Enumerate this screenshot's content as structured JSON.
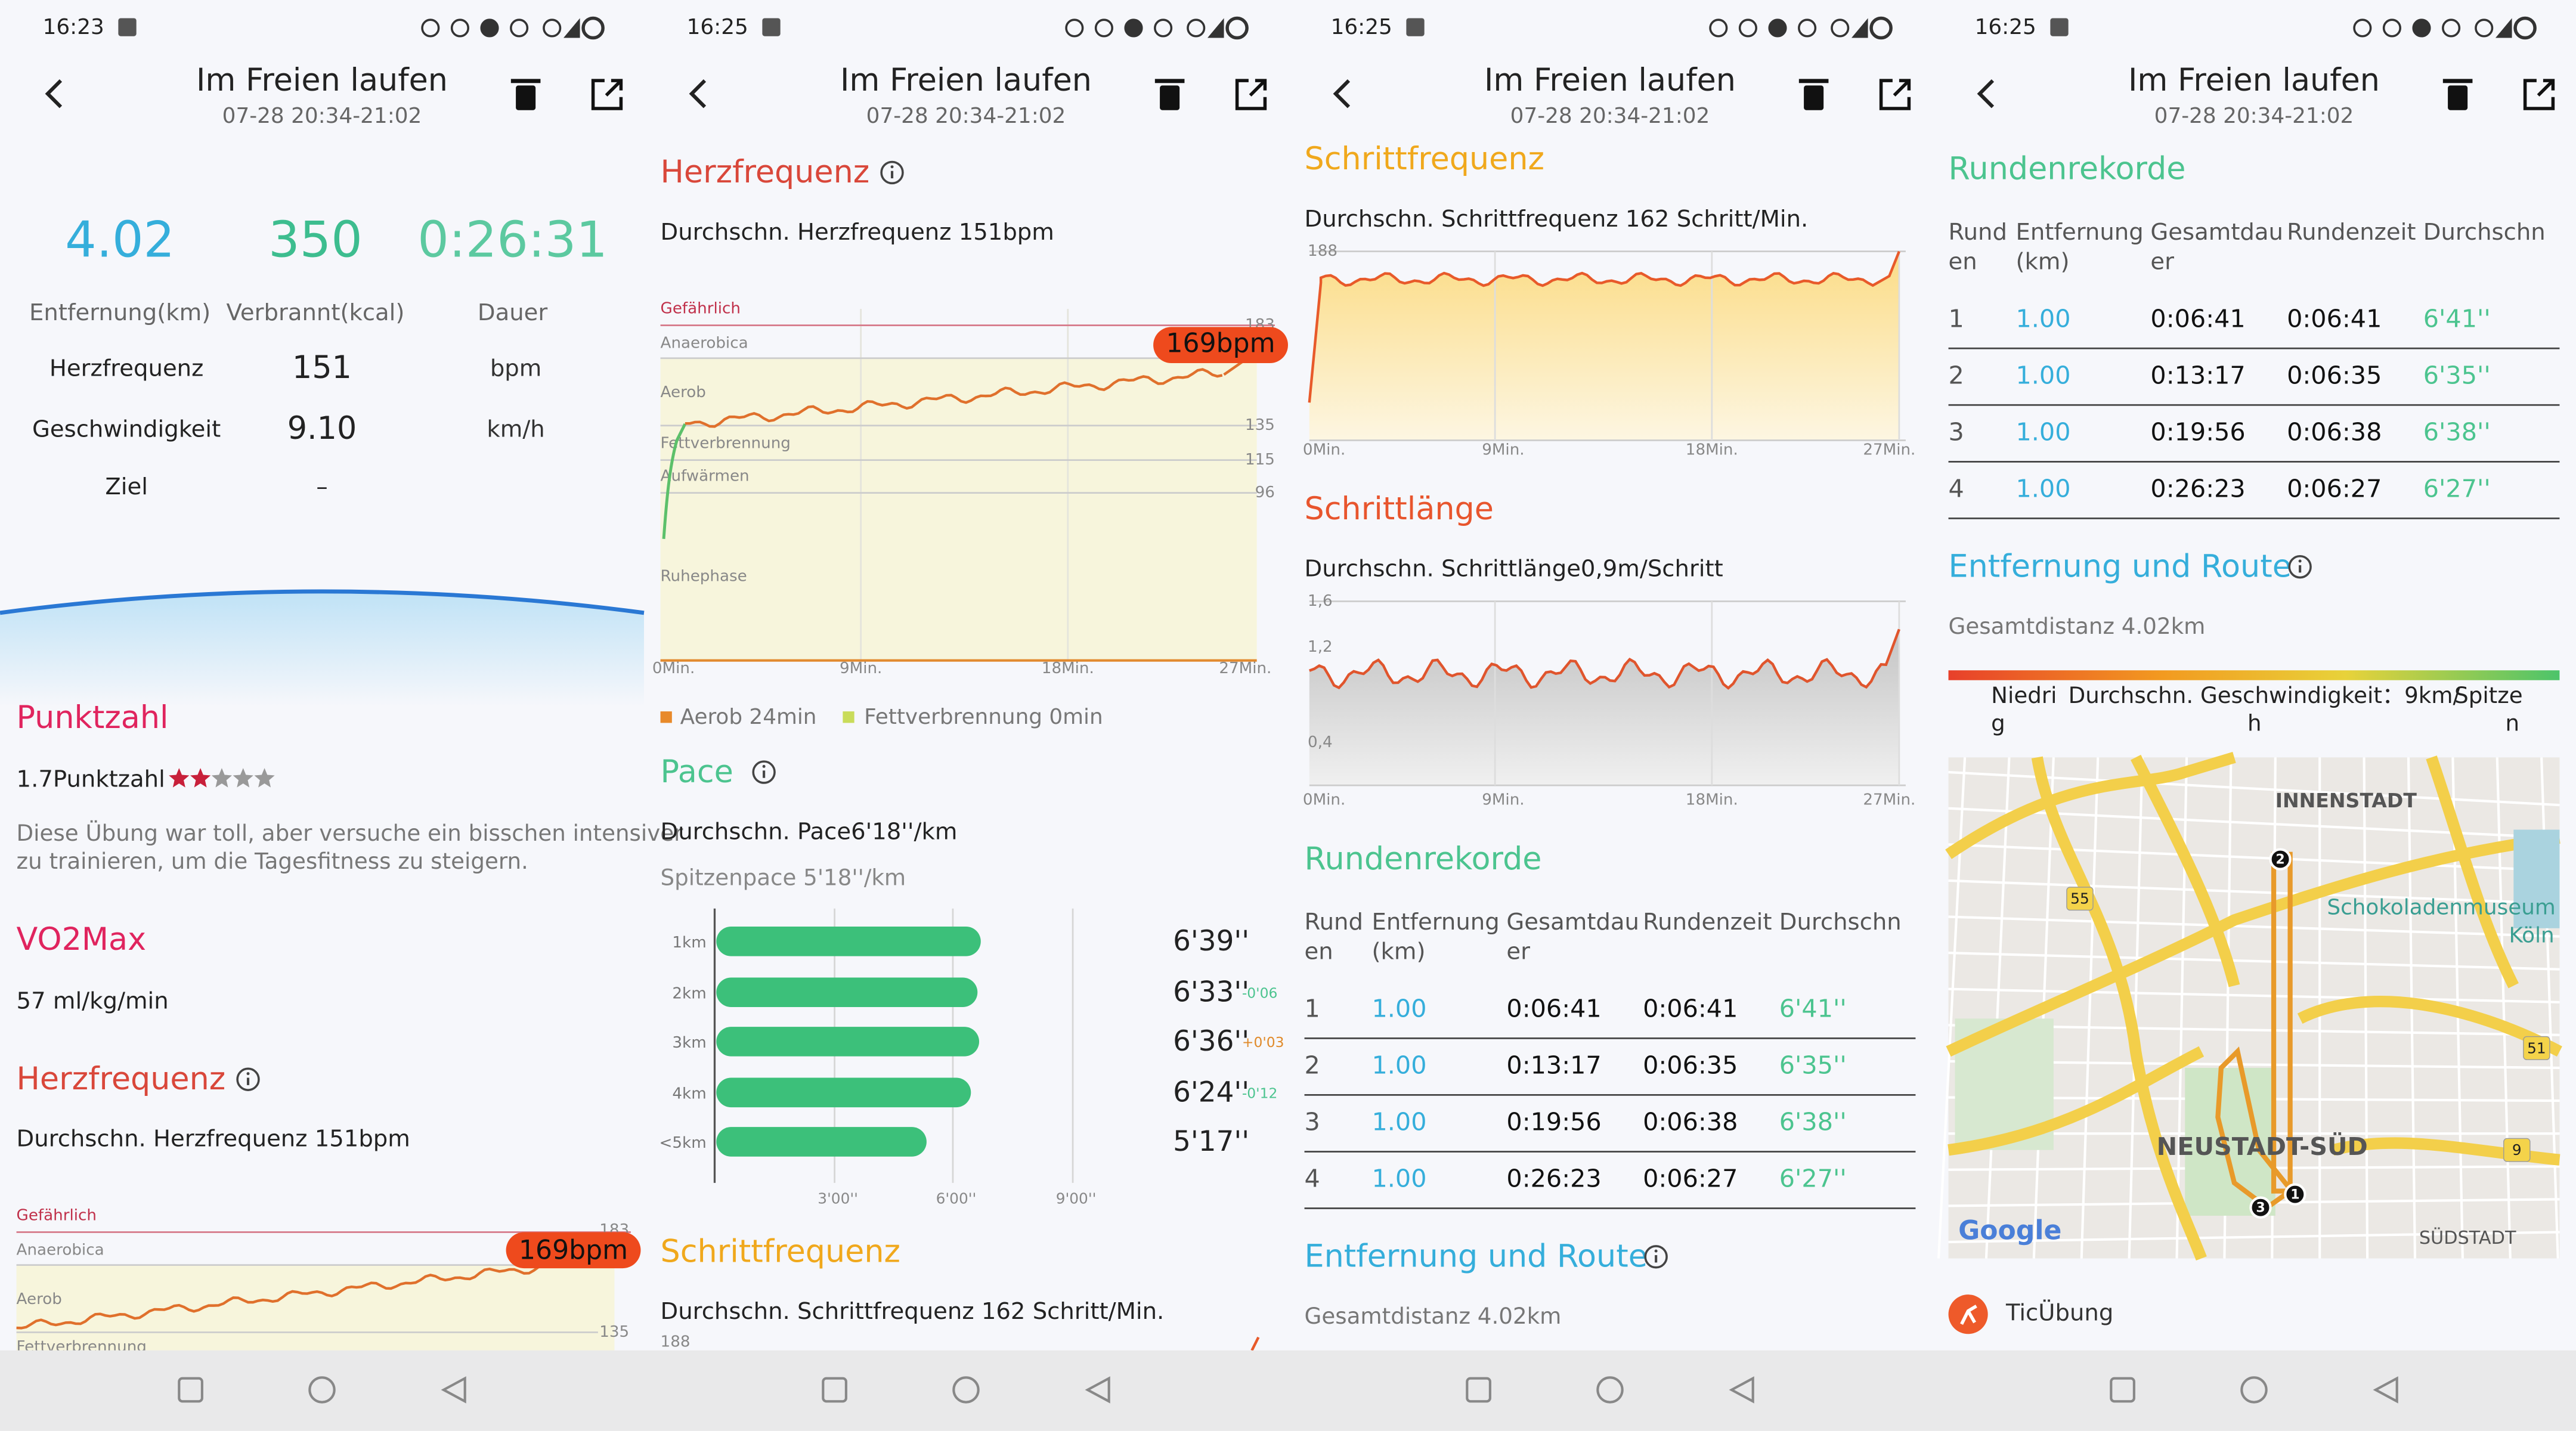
{
  "status_bar": {
    "times": [
      "16:23",
      "16:25",
      "16:25",
      "16:25"
    ]
  },
  "header": {
    "title": "Im Freien laufen",
    "subtitle": "07-28 20:34-21:02"
  },
  "summary": {
    "stats": [
      {
        "value": "4.02",
        "label": "Entfernung(km)"
      },
      {
        "value": "350",
        "label": "Verbrannt(kcal)"
      },
      {
        "value": "0:26:31",
        "label": "Dauer"
      }
    ],
    "rows": [
      {
        "label": "Herzfrequenz",
        "value": "151",
        "unit": "bpm"
      },
      {
        "label": "Geschwindigkeit",
        "value": "9.10",
        "unit": "km/h"
      },
      {
        "label": "Ziel",
        "value": "–"
      }
    ]
  },
  "score": {
    "title": "Punktzahl",
    "value": "1.7Punktzahl",
    "text": [
      "Diese Übung war toll, aber versuche ein bisschen intensiver",
      "zu trainieren, um die Tagesfitness zu steigern."
    ]
  },
  "vo2max": {
    "title": "VO2Max",
    "value": "57 ml/kg/min"
  },
  "time_axis": [
    "0Min.",
    "9Min.",
    "18Min.",
    "27Min."
  ],
  "heart_rate": {
    "title": "Herzfrequenz",
    "average": "Durchschn. Herzfrequenz 151bpm",
    "zones": [
      "Gefährlich",
      "Anaerobica",
      "Aerob",
      "Fettverbrennung",
      "Aufwärmen",
      "Ruhephase"
    ],
    "ticks": [
      "183",
      "135",
      "115",
      "96"
    ],
    "badge": "169bpm",
    "legend": [
      "Aerob 24min",
      "Fettverbrennung 0min"
    ]
  },
  "pace": {
    "title": "Pace",
    "average": "Durchschn. Pace6'18''/km",
    "best": "Spitzenpace 5'18''/km",
    "rows": [
      {
        "label": "1km",
        "value": "6'39''"
      },
      {
        "label": "2km",
        "value": "6'33''",
        "delta": "-0'06"
      },
      {
        "label": "3km",
        "value": "6'36''",
        "delta": "+0'03"
      },
      {
        "label": "4km",
        "value": "6'24''",
        "delta": "-0'12"
      },
      {
        "label": "<5km",
        "value": "5'17''"
      }
    ],
    "x_labels": [
      "3'00''",
      "6'00''",
      "9'00''"
    ]
  },
  "cadence": {
    "title": "Schrittfrequenz",
    "average": "Durchschn. Schrittfrequenz 162 Schritt/Min.",
    "ticks": [
      "188"
    ]
  },
  "stride": {
    "title": "Schrittlänge",
    "average": "Durchschn. Schrittlänge0,9m/Schritt",
    "ticks": [
      "1,6",
      "1,2",
      "0,4"
    ]
  },
  "laps": {
    "title": "Rundenrekorde",
    "headers": [
      [
        "Rund",
        "en"
      ],
      [
        "Entfernung",
        "(km)"
      ],
      [
        "Gesamtdau",
        "er"
      ],
      [
        "Rundenzeit"
      ],
      [
        "Durchschn"
      ]
    ],
    "rows": [
      [
        "1",
        "1.00",
        "0:06:41",
        "0:06:41",
        "6'41''"
      ],
      [
        "2",
        "1.00",
        "0:13:17",
        "0:06:35",
        "6'35''"
      ],
      [
        "3",
        "1.00",
        "0:19:56",
        "0:06:38",
        "6'38''"
      ],
      [
        "4",
        "1.00",
        "0:26:23",
        "0:06:27",
        "6'27''"
      ]
    ]
  },
  "route": {
    "title": "Entfernung und Route",
    "total": "Gesamtdistanz 4.02km",
    "speed_legend": [
      [
        "Niedri",
        "g"
      ],
      [
        "Durchschn. Geschwindigkeit：9km/",
        "h"
      ],
      [
        "Spitze",
        "n"
      ]
    ],
    "map_labels": [
      "INNENSTADT",
      "Schokoladenmuseum",
      "Köln",
      "NEUSTADT-SÜD",
      "SÜDSTADT",
      "Google"
    ],
    "road_numbers": [
      "55",
      "51",
      "9"
    ],
    "markers": [
      "1",
      "2",
      "3"
    ]
  },
  "app": {
    "name": "TicÜbung"
  }
}
